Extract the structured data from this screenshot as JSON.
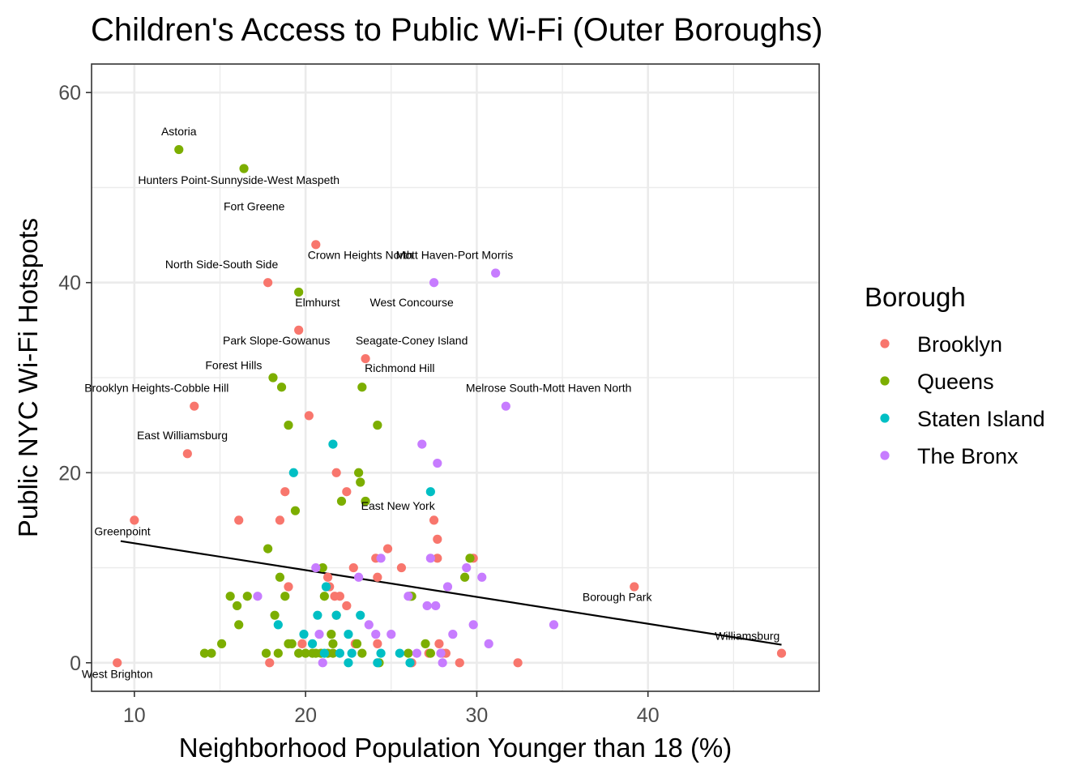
{
  "chart_data": {
    "type": "scatter",
    "title": "Children's Access to Public Wi-Fi (Outer Boroughs)",
    "xlabel": "Neighborhood Population Younger than 18 (%)",
    "ylabel": "Public NYC Wi-Fi Hotspots",
    "xlim": [
      7.5,
      50
    ],
    "ylim": [
      -3,
      63
    ],
    "x_ticks": [
      10,
      20,
      30,
      40
    ],
    "y_ticks": [
      0,
      20,
      40,
      60
    ],
    "grid": true,
    "legend": {
      "title": "Borough",
      "placement": "right"
    },
    "colors": {
      "Brooklyn": "#F8766D",
      "Queens": "#7CAE00",
      "Staten Island": "#00BFC4",
      "The Bronx": "#C77CFF"
    },
    "trend_line": {
      "x": [
        9.2,
        47.8
      ],
      "y": [
        12.8,
        1.9
      ],
      "color": "#000000"
    },
    "series": [
      {
        "name": "Brooklyn",
        "color": "#F8766D",
        "x": [
          9.0,
          10.0,
          13.1,
          13.5,
          16.1,
          17.8,
          17.9,
          18.5,
          18.8,
          19.0,
          19.6,
          19.8,
          20.2,
          20.6,
          21.3,
          21.4,
          21.7,
          21.8,
          22.0,
          22.4,
          22.4,
          22.8,
          22.9,
          23.5,
          24.1,
          24.2,
          24.2,
          24.8,
          25.6,
          26.2,
          27.2,
          27.5,
          27.7,
          27.8,
          27.7,
          28.0,
          28.2,
          29.0,
          29.8,
          32.4,
          39.2,
          47.8
        ],
        "y": [
          0,
          15,
          22,
          27,
          15,
          40,
          0,
          15,
          18,
          8,
          35,
          2,
          26,
          44,
          9,
          8,
          7,
          20,
          7,
          18,
          6,
          10,
          2,
          32,
          11,
          9,
          2,
          12,
          10,
          0,
          1,
          15,
          11,
          2,
          13,
          1,
          1,
          0,
          11,
          0,
          8,
          1
        ]
      },
      {
        "name": "Queens",
        "color": "#7CAE00",
        "x": [
          12.6,
          14.1,
          14.5,
          15.1,
          15.6,
          16.0,
          16.1,
          16.4,
          16.6,
          17.7,
          17.8,
          18.1,
          18.2,
          18.4,
          18.5,
          18.6,
          18.8,
          19.0,
          19.0,
          19.2,
          19.4,
          19.6,
          19.6,
          20.0,
          20.4,
          20.6,
          20.9,
          21.0,
          21.1,
          21.3,
          21.5,
          21.6,
          21.6,
          21.8,
          22.1,
          23.0,
          23.1,
          23.2,
          23.3,
          23.3,
          23.5,
          24.2,
          24.3,
          26.0,
          26.1,
          26.2,
          27.0,
          27.3,
          29.3,
          29.6
        ],
        "y": [
          54,
          1,
          1,
          2,
          7,
          6,
          4,
          52,
          7,
          1,
          12,
          30,
          5,
          1,
          9,
          29,
          7,
          2,
          25,
          2,
          16,
          39,
          1,
          1,
          1,
          1,
          1,
          10,
          7,
          1,
          3,
          2,
          1,
          5,
          17,
          2,
          20,
          19,
          1,
          29,
          17,
          25,
          0,
          1,
          7,
          7,
          2,
          1,
          9,
          11
        ]
      },
      {
        "name": "Staten Island",
        "color": "#00BFC4",
        "x": [
          18.4,
          19.3,
          19.9,
          20.4,
          20.7,
          21.1,
          21.2,
          21.6,
          21.8,
          22.0,
          22.5,
          22.5,
          22.7,
          23.2,
          24.2,
          24.4,
          25.5,
          26.1,
          27.3
        ],
        "y": [
          4,
          20,
          3,
          2,
          5,
          1,
          8,
          23,
          5,
          1,
          0,
          3,
          1,
          5,
          0,
          1,
          1,
          0,
          18
        ]
      },
      {
        "name": "The Bronx",
        "color": "#C77CFF",
        "x": [
          17.2,
          20.6,
          20.8,
          21.0,
          23.1,
          23.7,
          24.1,
          24.4,
          25.0,
          26.0,
          26.5,
          26.8,
          27.1,
          27.3,
          27.5,
          27.6,
          27.7,
          27.9,
          28.0,
          28.3,
          28.6,
          29.4,
          29.8,
          30.3,
          30.7,
          31.1,
          31.7,
          34.5
        ],
        "y": [
          7,
          10,
          3,
          0,
          9,
          4,
          3,
          11,
          3,
          7,
          1,
          23,
          6,
          11,
          40,
          6,
          21,
          1,
          0,
          8,
          3,
          10,
          4,
          9,
          2,
          41,
          27,
          4
        ]
      }
    ],
    "annotations": [
      {
        "text": "Astoria",
        "x": 12.6,
        "y": 55.5
      },
      {
        "text": "Hunters Point-Sunnyside-West Maspeth",
        "x": 16.1,
        "y": 50.4
      },
      {
        "text": "Fort Greene",
        "x": 17.0,
        "y": 47.6
      },
      {
        "text": "Crown Heights North",
        "x": 23.2,
        "y": 42.5
      },
      {
        "text": "Mott Haven-Port Morris",
        "x": 28.7,
        "y": 42.5
      },
      {
        "text": "North Side-South Side",
        "x": 15.1,
        "y": 41.5
      },
      {
        "text": "Elmhurst",
        "x": 20.7,
        "y": 37.5
      },
      {
        "text": "West Concourse",
        "x": 26.2,
        "y": 37.5
      },
      {
        "text": "Park Slope-Gowanus",
        "x": 18.3,
        "y": 33.5
      },
      {
        "text": "Seagate-Coney Island",
        "x": 26.2,
        "y": 33.5
      },
      {
        "text": "Forest Hills",
        "x": 15.8,
        "y": 30.9
      },
      {
        "text": "Richmond Hill",
        "x": 25.5,
        "y": 30.6
      },
      {
        "text": "Brooklyn Heights-Cobble Hill",
        "x": 11.3,
        "y": 28.5
      },
      {
        "text": "Melrose South-Mott Haven North",
        "x": 34.2,
        "y": 28.5
      },
      {
        "text": "East Williamsburg",
        "x": 12.8,
        "y": 23.5
      },
      {
        "text": "East New York",
        "x": 25.4,
        "y": 16.1
      },
      {
        "text": "Greenpoint",
        "x": 9.3,
        "y": 13.4
      },
      {
        "text": "Borough Park",
        "x": 38.2,
        "y": 6.5
      },
      {
        "text": "Williamsburg",
        "x": 45.8,
        "y": 2.4
      },
      {
        "text": "West Brighton",
        "x": 9.0,
        "y": -1.6
      }
    ]
  }
}
